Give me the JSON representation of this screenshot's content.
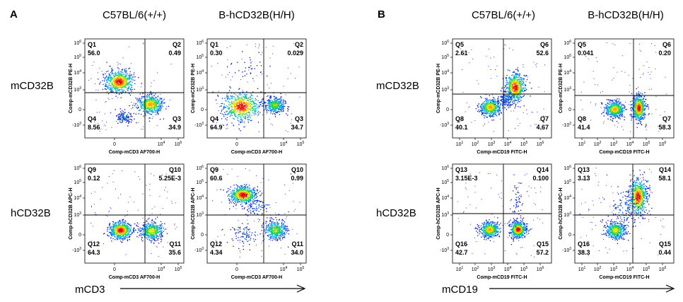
{
  "panels": [
    {
      "letter": "A",
      "col_titles": [
        "C57BL/6(+/+)",
        "B-hCD32B(H/H)"
      ],
      "row_labels": [
        "mCD32B",
        "hCD32B"
      ],
      "x_axis": "mCD3"
    },
    {
      "letter": "B",
      "col_titles": [
        "C57BL/6(+/+)",
        "B-hCD32B(H/H)"
      ],
      "row_labels": [
        "mCD32B",
        "hCD32B"
      ],
      "x_axis": "mCD19"
    }
  ],
  "chart_data": [
    {
      "type": "scatter",
      "panel": "A",
      "row": "mCD32B",
      "strain": "C57BL/6(+/+)",
      "xlabel": "Comp-mCD3 AF700-H",
      "ylabel": "Comp-mCD32B PE-H",
      "scale": "biexp",
      "quadrants": [
        {
          "name": "Q1",
          "value": "56.0"
        },
        {
          "name": "Q2",
          "value": "0.49"
        },
        {
          "name": "Q3",
          "value": "34.9"
        },
        {
          "name": "Q4",
          "value": "8.56"
        }
      ]
    },
    {
      "type": "scatter",
      "panel": "A",
      "row": "mCD32B",
      "strain": "B-hCD32B(H/H)",
      "xlabel": "Comp-mCD3 AF700-H",
      "ylabel": "Comp-mCD32B PE-H",
      "scale": "biexp",
      "quadrants": [
        {
          "name": "Q1",
          "value": "0.30"
        },
        {
          "name": "Q2",
          "value": "0.029"
        },
        {
          "name": "Q3",
          "value": "34.7"
        },
        {
          "name": "Q4",
          "value": "64.9"
        }
      ]
    },
    {
      "type": "scatter",
      "panel": "A",
      "row": "hCD32B",
      "strain": "C57BL/6(+/+)",
      "xlabel": "Comp-mCD3 AF700-H",
      "ylabel": "Comp-hCD32B APC-H",
      "scale": "biexp",
      "quadrants": [
        {
          "name": "Q9",
          "value": "0.12"
        },
        {
          "name": "Q10",
          "value": "5.25E-3"
        },
        {
          "name": "Q11",
          "value": "35.6"
        },
        {
          "name": "Q12",
          "value": "64.3"
        }
      ]
    },
    {
      "type": "scatter",
      "panel": "A",
      "row": "hCD32B",
      "strain": "B-hCD32B(H/H)",
      "xlabel": "Comp-mCD3 AF700-H",
      "ylabel": "Comp-hCD32B APC-H",
      "scale": "biexp",
      "quadrants": [
        {
          "name": "Q9",
          "value": "60.6"
        },
        {
          "name": "Q10",
          "value": "0.99"
        },
        {
          "name": "Q11",
          "value": "34.0"
        },
        {
          "name": "Q12",
          "value": "4.34"
        }
      ]
    },
    {
      "type": "scatter",
      "panel": "B",
      "row": "mCD32B",
      "strain": "C57BL/6(+/+)",
      "xlabel": "Comp-mCD19 FITC-H",
      "ylabel": "Comp-mCD32B PE-H",
      "scale": "log",
      "quadrants": [
        {
          "name": "Q5",
          "value": "2.61"
        },
        {
          "name": "Q6",
          "value": "52.6"
        },
        {
          "name": "Q7",
          "value": "4.67"
        },
        {
          "name": "Q8",
          "value": "40.1"
        }
      ]
    },
    {
      "type": "scatter",
      "panel": "B",
      "row": "mCD32B",
      "strain": "B-hCD32B(H/H)",
      "xlabel": "Comp-mCD19 FITC-H",
      "ylabel": "Comp-mCD32B PE-H",
      "scale": "log",
      "quadrants": [
        {
          "name": "Q5",
          "value": "0.041"
        },
        {
          "name": "Q6",
          "value": "0.20"
        },
        {
          "name": "Q7",
          "value": "58.3"
        },
        {
          "name": "Q8",
          "value": "41.4"
        }
      ]
    },
    {
      "type": "scatter",
      "panel": "B",
      "row": "hCD32B",
      "strain": "C57BL/6(+/+)",
      "xlabel": "Comp-mCD19 FITC-H",
      "ylabel": "Comp-hCD32B APC-H",
      "scale": "log",
      "quadrants": [
        {
          "name": "Q13",
          "value": "3.15E-3"
        },
        {
          "name": "Q14",
          "value": "0.100"
        },
        {
          "name": "Q15",
          "value": "57.2"
        },
        {
          "name": "Q16",
          "value": "42.7"
        }
      ]
    },
    {
      "type": "scatter",
      "panel": "B",
      "row": "hCD32B",
      "strain": "B-hCD32B(H/H)",
      "xlabel": "Comp-mCD19 FITC-H",
      "ylabel": "Comp-hCD32B APC-H",
      "scale": "log",
      "quadrants": [
        {
          "name": "Q13",
          "value": "3.13"
        },
        {
          "name": "Q14",
          "value": "58.1"
        },
        {
          "name": "Q15",
          "value": "0.44"
        },
        {
          "name": "Q16",
          "value": "38.3"
        }
      ]
    }
  ],
  "ticks": {
    "biexp_x": [
      {
        "exp": "0",
        "label": "0"
      },
      {
        "exp": "4",
        "label": "10"
      },
      {
        "exp": "5",
        "label": "10"
      }
    ],
    "biexp_y": [
      {
        "exp": "6",
        "label": "10"
      },
      {
        "exp": "5",
        "label": "10"
      },
      {
        "exp": "4",
        "label": "10"
      },
      {
        "exp": "3",
        "label": "10"
      },
      {
        "exp": "0",
        "label": "0"
      },
      {
        "exp": "3",
        "label": "-10"
      }
    ],
    "log_x": [
      {
        "exp": "1",
        "label": "10"
      },
      {
        "exp": "2",
        "label": "10"
      },
      {
        "exp": "3",
        "label": "10"
      },
      {
        "exp": "4",
        "label": "10"
      },
      {
        "exp": "5",
        "label": "10"
      },
      {
        "exp": "6",
        "label": "10"
      }
    ],
    "log_y": [
      {
        "exp": "6",
        "label": "10"
      },
      {
        "exp": "5",
        "label": "10"
      },
      {
        "exp": "4",
        "label": "10"
      },
      {
        "exp": "3",
        "label": "10"
      },
      {
        "exp": "0",
        "label": "0"
      },
      {
        "exp": "3",
        "label": "-10"
      }
    ]
  }
}
